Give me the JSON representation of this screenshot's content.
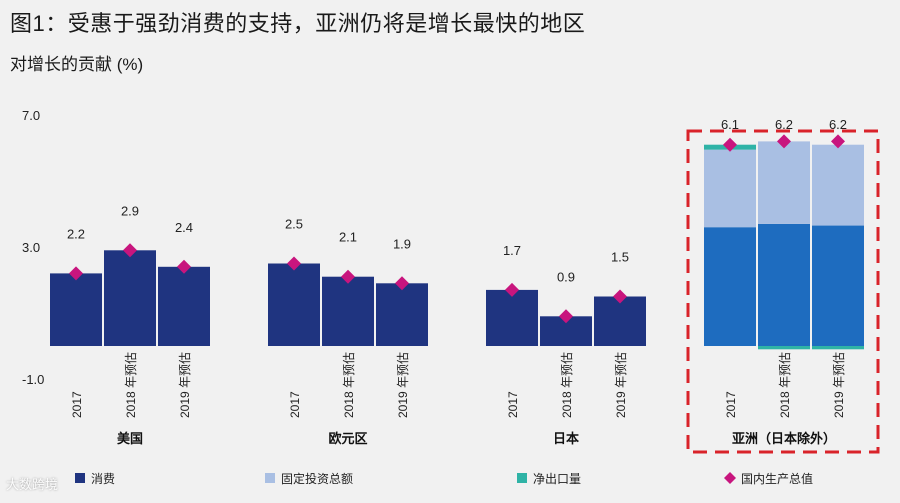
{
  "title": "图1：受惠于强劲消费的支持，亚洲仍将是增长最快的地区",
  "subtitle": "对增长的贡献 (%)",
  "watermark": "大数跨境",
  "chart_data": {
    "type": "bar",
    "stacked": true,
    "title": "图1：受惠于强劲消费的支持，亚洲仍将是增长最快的地区",
    "ylabel": "对增长的贡献 (%)",
    "ylim": [
      -1.0,
      7.0
    ],
    "yticks": [
      "7.0",
      "3.0",
      "-1.0"
    ],
    "grid": false,
    "legend_position": "bottom",
    "groups": [
      {
        "name": "美国",
        "categories": [
          "2017",
          "2018 年预估",
          "2019 年预估"
        ],
        "consumption": [
          2.2,
          2.9,
          2.4
        ],
        "investment": [
          0,
          0,
          0
        ],
        "net_exports": [
          0,
          0,
          0
        ],
        "gdp": [
          2.2,
          2.9,
          2.4
        ],
        "labels": [
          "2.2",
          "2.9",
          "2.4"
        ],
        "boxed": false
      },
      {
        "name": "欧元区",
        "categories": [
          "2017",
          "2018 年预估",
          "2019 年预估"
        ],
        "consumption": [
          2.5,
          2.1,
          1.9
        ],
        "investment": [
          0,
          0,
          0
        ],
        "net_exports": [
          0,
          0,
          0
        ],
        "gdp": [
          2.5,
          2.1,
          1.9
        ],
        "labels": [
          "2.5",
          "2.1",
          "1.9"
        ],
        "boxed": false
      },
      {
        "name": "日本",
        "categories": [
          "2017",
          "2018 年预估",
          "2019 年预估"
        ],
        "consumption": [
          1.7,
          0.9,
          1.5
        ],
        "investment": [
          0,
          0,
          0
        ],
        "net_exports": [
          0,
          0,
          0
        ],
        "gdp": [
          1.7,
          0.9,
          1.5
        ],
        "labels": [
          "1.7",
          "0.9",
          "1.5"
        ],
        "boxed": false
      },
      {
        "name": "亚洲（日本除外）",
        "categories": [
          "2017",
          "2018 年预估",
          "2019 年预估"
        ],
        "consumption": [
          3.6,
          3.7,
          3.65
        ],
        "investment": [
          2.35,
          2.5,
          2.45
        ],
        "net_exports": [
          0.15,
          -0.1,
          -0.1
        ],
        "gdp": [
          6.1,
          6.2,
          6.2
        ],
        "labels": [
          "6.1",
          "6.2",
          "6.2"
        ],
        "boxed": true
      }
    ],
    "series": [
      {
        "key": "consumption",
        "name": "消费",
        "color": "#1f3480"
      },
      {
        "key": "investment",
        "name": "固定投资总额",
        "color": "#a9bfe3"
      },
      {
        "key": "net_exports",
        "name": "净出口量",
        "color": "#2fb3a6"
      },
      {
        "key": "gdp",
        "name": "国内生产总值",
        "color": "#c8157e"
      }
    ],
    "highlight_colors": {
      "consumption_boxed": "#1e6cbf",
      "box_border": "#d9232a"
    }
  }
}
